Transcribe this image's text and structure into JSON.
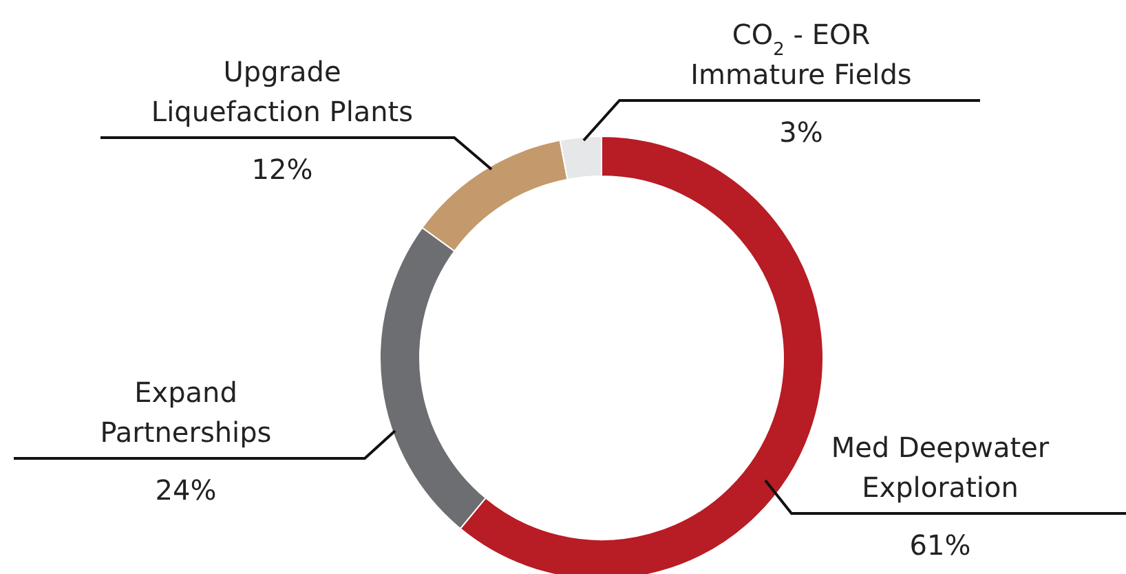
{
  "chart_data": {
    "type": "donut",
    "categories": [
      "Med Deepwater\nExploration",
      "Expand\nPartnerships",
      "Upgrade\nLiquefaction Plants",
      "CO$_{2}$ - EOR\nImmature Fields"
    ],
    "values": [
      61,
      24,
      12,
      3
    ],
    "colors": [
      "#b81c24",
      "#6d6e71",
      "#c49a6c",
      "#e6e7e8"
    ],
    "value_labels": [
      "61%",
      "24%",
      "12%",
      "3%"
    ]
  }
}
